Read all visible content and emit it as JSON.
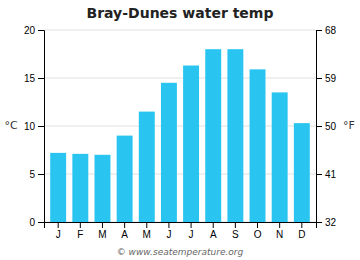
{
  "chart_data": {
    "type": "bar",
    "title": "Bray-Dunes water temp",
    "categories": [
      "J",
      "F",
      "M",
      "A",
      "M",
      "J",
      "J",
      "A",
      "S",
      "O",
      "N",
      "D"
    ],
    "values": [
      7.2,
      7.1,
      7.0,
      9.0,
      11.5,
      14.5,
      16.3,
      18.0,
      18.0,
      15.9,
      13.5,
      10.3
    ],
    "color": "#29c5f0",
    "ylabel": "°C",
    "ylim": [
      0,
      20
    ],
    "yticks": [
      0,
      5,
      10,
      15,
      20
    ],
    "y2label": "°F",
    "y2lim": [
      32,
      68
    ],
    "y2ticks": [
      32,
      41,
      50,
      59,
      68
    ],
    "grid": true,
    "annotations": [
      "© www.seatemperature.org"
    ]
  }
}
